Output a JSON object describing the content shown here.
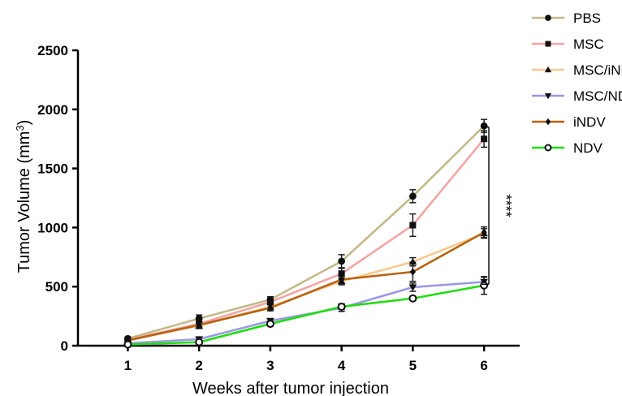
{
  "chart_data": {
    "type": "line",
    "xlabel": "Weeks after tumor injection",
    "ylabel": "Tumor Volume (mm",
    "ylabel_sup": "3",
    "ylabel_close": ")",
    "x": [
      1,
      2,
      3,
      4,
      5,
      6
    ],
    "xlim": [
      0.3,
      6.5
    ],
    "ylim": [
      0,
      2500
    ],
    "yticks": [
      0,
      500,
      1000,
      1500,
      2000,
      2500
    ],
    "xticks": [
      1,
      2,
      3,
      4,
      5,
      6
    ],
    "grid": false,
    "legend_position": "top-right",
    "significance": {
      "label": "****",
      "from": 520,
      "to": 1850
    },
    "series": [
      {
        "name": "PBS",
        "color": "#c4b98a",
        "marker": "circle",
        "values": [
          60,
          230,
          390,
          715,
          1265,
          1860
        ],
        "errors": [
          10,
          30,
          25,
          55,
          55,
          55
        ]
      },
      {
        "name": "MSC",
        "color": "#f2a5a5",
        "marker": "square",
        "values": [
          50,
          185,
          370,
          610,
          1020,
          1750
        ],
        "errors": [
          8,
          25,
          25,
          45,
          95,
          70
        ]
      },
      {
        "name": "MSC/iNDV",
        "color": "#f8c98f",
        "marker": "triangle-up",
        "values": [
          45,
          170,
          330,
          545,
          710,
          950
        ],
        "errors": [
          8,
          25,
          25,
          30,
          35,
          40
        ]
      },
      {
        "name": "MSC/NDV",
        "color": "#9b98e6",
        "marker": "triangle-down",
        "values": [
          20,
          55,
          210,
          320,
          495,
          540
        ],
        "errors": [
          5,
          15,
          20,
          30,
          35,
          40
        ]
      },
      {
        "name": "iNDV",
        "color": "#b8620f",
        "marker": "diamond",
        "values": [
          45,
          175,
          320,
          560,
          625,
          960
        ],
        "errors": [
          8,
          25,
          25,
          30,
          80,
          45
        ]
      },
      {
        "name": "NDV",
        "color": "#22dd11",
        "marker": "open-circle",
        "values": [
          10,
          30,
          185,
          330,
          400,
          510
        ],
        "errors": [
          5,
          10,
          20,
          25,
          20,
          75
        ]
      }
    ]
  }
}
